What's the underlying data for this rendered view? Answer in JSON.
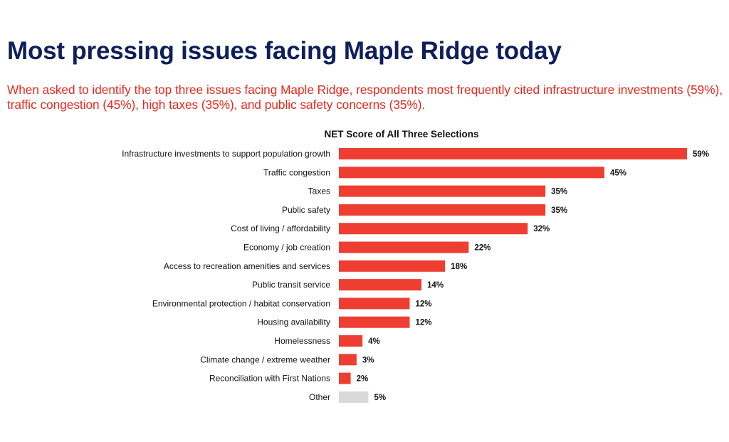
{
  "title": "Most pressing issues facing Maple Ridge today",
  "subtitle": "When asked to identify the top three issues facing Maple Ridge, respondents most frequently cited infrastructure investments (59%), traffic congestion (45%), high taxes (35%), and public safety concerns (35%).",
  "chart_data": {
    "type": "bar",
    "orientation": "horizontal",
    "title": "NET Score of All Three Selections",
    "xlabel": "",
    "ylabel": "",
    "xlim": [
      0,
      60
    ],
    "grid": false,
    "categories": [
      "Infrastructure investments to support population growth",
      "Traffic congestion",
      "Taxes",
      "Public safety",
      "Cost of living / affordability",
      "Economy / job creation",
      "Access to recreation amenities and services",
      "Public transit service",
      "Environmental protection / habitat conservation",
      "Housing availability",
      "Homelessness",
      "Climate change / extreme weather",
      "Reconciliation with First Nations",
      "Other"
    ],
    "values": [
      59,
      45,
      35,
      35,
      32,
      22,
      18,
      14,
      12,
      12,
      4,
      3,
      2,
      5
    ],
    "data_labels": [
      "59%",
      "45%",
      "35%",
      "35%",
      "32%",
      "22%",
      "18%",
      "14%",
      "12%",
      "12%",
      "4%",
      "3%",
      "2%",
      "5%"
    ],
    "colors": {
      "primary": "#ee3e32",
      "other": "#d9d9d9"
    }
  }
}
